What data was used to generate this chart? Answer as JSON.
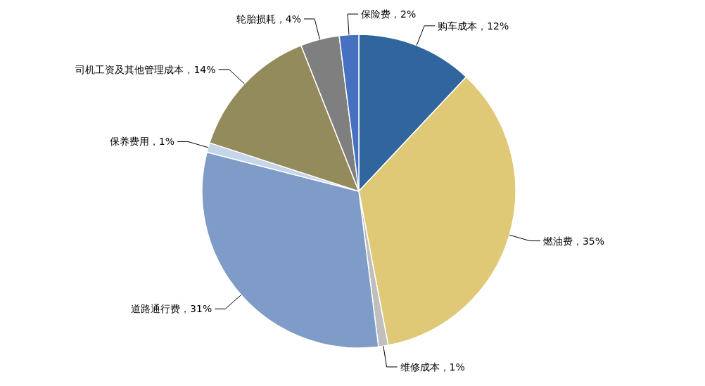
{
  "chart_data": {
    "type": "pie",
    "categories": [
      "购车成本",
      "燃油费",
      "维修成本",
      "道路通行费",
      "保养费用",
      "司机工资及其他管理成本",
      "轮胎损耗",
      "保险费"
    ],
    "values": [
      12,
      35,
      1,
      31,
      1,
      14,
      4,
      2
    ],
    "value_labels": [
      "12%",
      "35%",
      "1%",
      "31%",
      "1%",
      "14%",
      "4%",
      "2%"
    ],
    "colors": [
      "#30669d",
      "#dfc977",
      "#bfbfbf",
      "#7f9bc7",
      "#c6d5ea",
      "#948b5c",
      "#7f7f7f",
      "#4670c0"
    ]
  }
}
